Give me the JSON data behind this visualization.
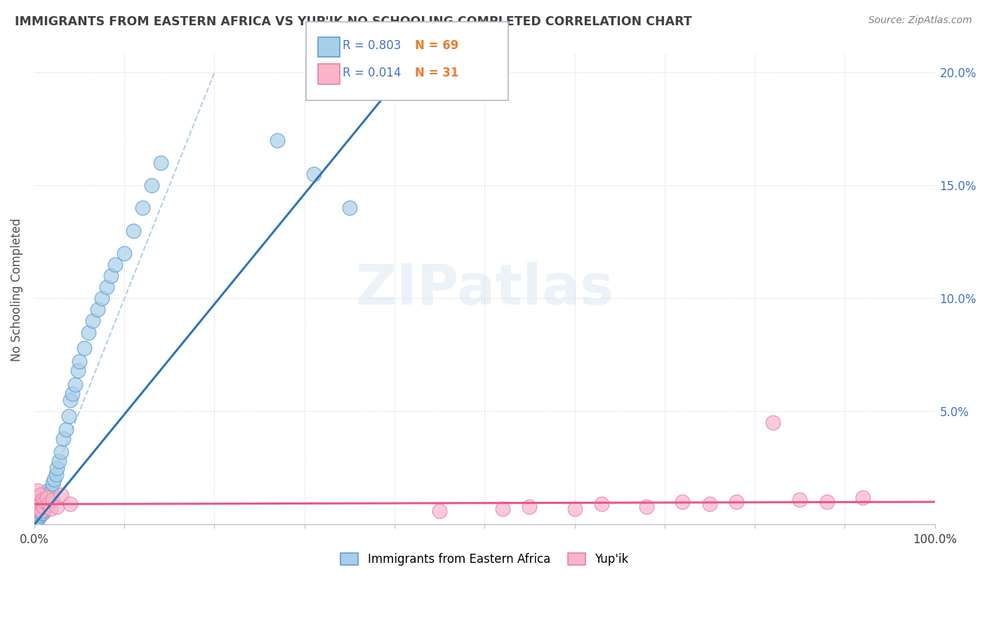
{
  "title": "IMMIGRANTS FROM EASTERN AFRICA VS YUP'IK NO SCHOOLING COMPLETED CORRELATION CHART",
  "source": "Source: ZipAtlas.com",
  "ylabel": "No Schooling Completed",
  "xlim": [
    0,
    1.0
  ],
  "ylim": [
    0,
    0.208
  ],
  "blue_R": 0.803,
  "blue_N": 69,
  "pink_R": 0.014,
  "pink_N": 31,
  "blue_color": "#a8cfe8",
  "pink_color": "#f9b4c8",
  "blue_edge_color": "#5b9bd5",
  "pink_edge_color": "#e87da8",
  "blue_line_color": "#2e75b6",
  "pink_line_color": "#e8568a",
  "title_color": "#404040",
  "source_color": "#808080",
  "right_tick_color": "#4472c4",
  "background_color": "#ffffff",
  "grid_color": "#d3d3d3",
  "legend_R_color": "#4472c4",
  "legend_N_color": "#ed7d31",
  "diag_color": "#9dc3e6",
  "blue_x": [
    0.001,
    0.001,
    0.001,
    0.002,
    0.002,
    0.002,
    0.002,
    0.003,
    0.003,
    0.003,
    0.003,
    0.004,
    0.004,
    0.004,
    0.005,
    0.005,
    0.005,
    0.005,
    0.006,
    0.006,
    0.006,
    0.007,
    0.007,
    0.007,
    0.008,
    0.008,
    0.009,
    0.009,
    0.01,
    0.01,
    0.011,
    0.012,
    0.013,
    0.014,
    0.015,
    0.016,
    0.017,
    0.018,
    0.019,
    0.02,
    0.022,
    0.024,
    0.025,
    0.027,
    0.03,
    0.032,
    0.035,
    0.038,
    0.04,
    0.042,
    0.045,
    0.048,
    0.05,
    0.055,
    0.06,
    0.065,
    0.07,
    0.075,
    0.08,
    0.085,
    0.09,
    0.1,
    0.11,
    0.12,
    0.13,
    0.14,
    0.27,
    0.31,
    0.35
  ],
  "blue_y": [
    0.003,
    0.005,
    0.007,
    0.002,
    0.004,
    0.006,
    0.009,
    0.003,
    0.005,
    0.008,
    0.011,
    0.004,
    0.006,
    0.009,
    0.003,
    0.006,
    0.008,
    0.012,
    0.004,
    0.007,
    0.01,
    0.005,
    0.008,
    0.012,
    0.006,
    0.009,
    0.005,
    0.008,
    0.006,
    0.009,
    0.007,
    0.008,
    0.009,
    0.01,
    0.015,
    0.012,
    0.013,
    0.014,
    0.015,
    0.018,
    0.02,
    0.022,
    0.025,
    0.028,
    0.032,
    0.038,
    0.042,
    0.048,
    0.055,
    0.058,
    0.062,
    0.068,
    0.072,
    0.078,
    0.085,
    0.09,
    0.095,
    0.1,
    0.105,
    0.11,
    0.115,
    0.12,
    0.13,
    0.14,
    0.15,
    0.16,
    0.17,
    0.155,
    0.14
  ],
  "pink_x": [
    0.001,
    0.002,
    0.003,
    0.004,
    0.005,
    0.006,
    0.007,
    0.008,
    0.009,
    0.01,
    0.012,
    0.014,
    0.016,
    0.018,
    0.02,
    0.025,
    0.03,
    0.04,
    0.45,
    0.52,
    0.55,
    0.6,
    0.63,
    0.68,
    0.72,
    0.75,
    0.78,
    0.82,
    0.85,
    0.88,
    0.92
  ],
  "pink_y": [
    0.012,
    0.008,
    0.015,
    0.01,
    0.007,
    0.013,
    0.009,
    0.006,
    0.011,
    0.008,
    0.01,
    0.012,
    0.009,
    0.007,
    0.011,
    0.008,
    0.013,
    0.009,
    0.006,
    0.007,
    0.008,
    0.007,
    0.009,
    0.008,
    0.01,
    0.009,
    0.01,
    0.045,
    0.011,
    0.01,
    0.012
  ],
  "blue_line_x0": 0.0,
  "blue_line_y0": 0.0,
  "blue_line_x1": 0.4,
  "blue_line_y1": 0.195,
  "pink_line_x0": 0.0,
  "pink_line_y0": 0.009,
  "pink_line_x1": 1.0,
  "pink_line_y1": 0.01,
  "diag_line_x0": 0.0,
  "diag_line_y0": 0.0,
  "diag_line_x1": 0.2,
  "diag_line_y1": 0.2
}
